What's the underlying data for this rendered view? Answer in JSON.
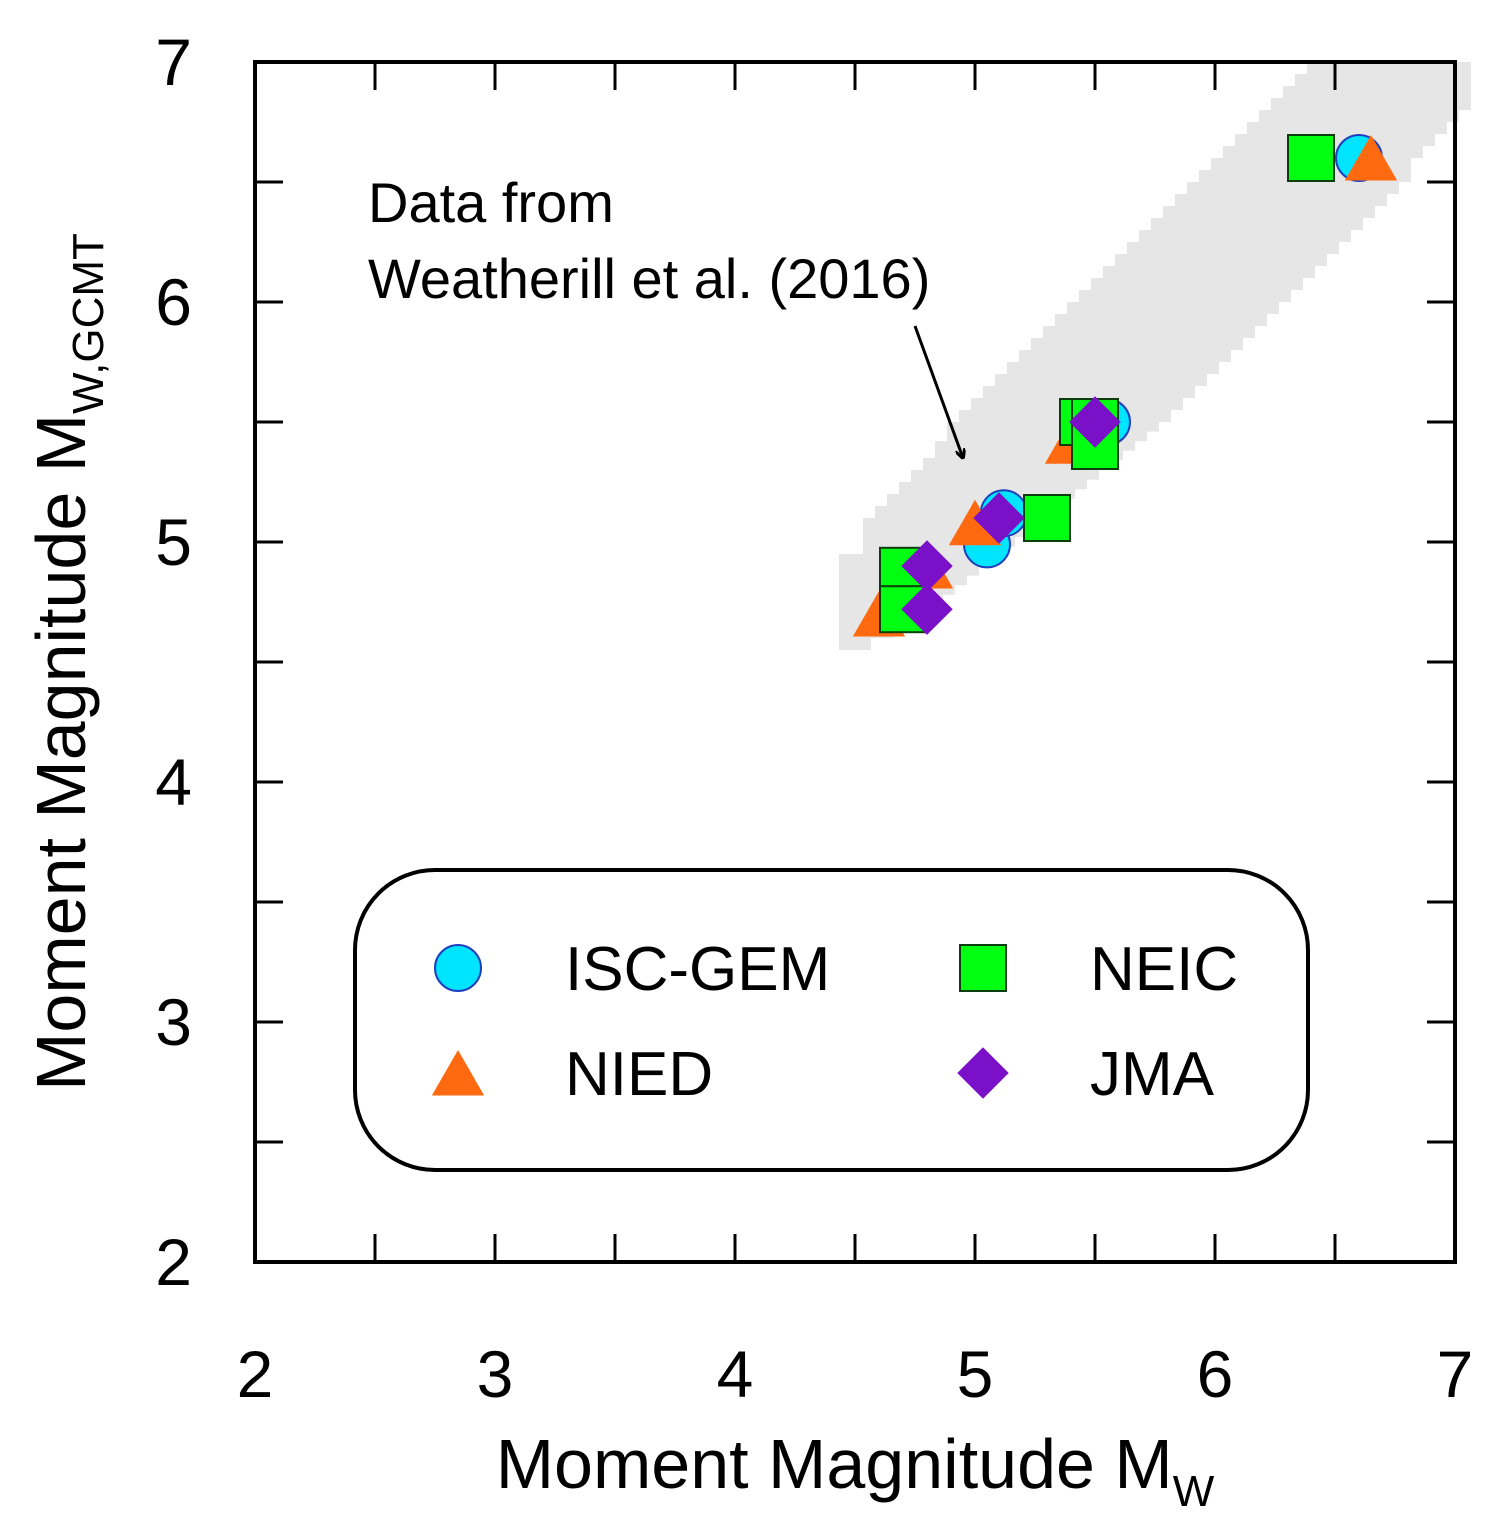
{
  "chart_data": {
    "type": "scatter",
    "title": "",
    "xlabel": "Moment Magnitude M",
    "xlabel_sub": "W",
    "ylabel": "Moment Magnitude M",
    "ylabel_sub": "W,GCMT",
    "xlim": [
      2,
      7
    ],
    "ylim": [
      2,
      7
    ],
    "xticks": [
      2,
      3,
      4,
      5,
      6,
      7
    ],
    "yticks": [
      2,
      3,
      4,
      5,
      6,
      7
    ],
    "xtick_labels": [
      "2",
      "3",
      "4",
      "5",
      "6",
      "7"
    ],
    "ytick_labels": [
      "2",
      "3",
      "4",
      "5",
      "6",
      "7"
    ],
    "grid": false,
    "legend": "bottom-center",
    "background_data": {
      "label": "Data from Weatherill et al. (2016)",
      "color": "#e6e6e6",
      "x": [
        4.5,
        4.6,
        4.65,
        4.7,
        4.75,
        4.8,
        4.85,
        4.9,
        4.95,
        5.0,
        5.05,
        5.1,
        5.15,
        5.2,
        5.25,
        5.3,
        5.35,
        5.4,
        5.45,
        5.5,
        5.55,
        5.6,
        5.65,
        5.7,
        5.75,
        5.8,
        5.85,
        5.9,
        5.95,
        6.0,
        6.05,
        6.1,
        6.15,
        6.2,
        6.25,
        6.3,
        6.35,
        6.4,
        6.45,
        6.5,
        6.55,
        6.6,
        6.65,
        6.7,
        6.75,
        6.8,
        6.85,
        6.9,
        6.95,
        7.0
      ],
      "y_min": [
        4.55,
        4.6,
        4.62,
        4.66,
        4.7,
        4.74,
        4.78,
        4.82,
        4.86,
        4.9,
        4.94,
        4.98,
        5.02,
        5.06,
        5.1,
        5.14,
        5.18,
        5.22,
        5.26,
        5.3,
        5.34,
        5.38,
        5.42,
        5.46,
        5.5,
        5.55,
        5.6,
        5.65,
        5.7,
        5.75,
        5.8,
        5.85,
        5.9,
        5.95,
        6.0,
        6.05,
        6.1,
        6.15,
        6.2,
        6.25,
        6.3,
        6.35,
        6.4,
        6.45,
        6.5,
        6.6,
        6.65,
        6.7,
        6.75,
        6.8
      ],
      "y_max": [
        4.95,
        5.1,
        5.15,
        5.2,
        5.25,
        5.3,
        5.35,
        5.42,
        5.5,
        5.55,
        5.6,
        5.65,
        5.7,
        5.75,
        5.8,
        5.85,
        5.9,
        5.95,
        6.0,
        6.05,
        6.1,
        6.15,
        6.2,
        6.25,
        6.3,
        6.35,
        6.4,
        6.45,
        6.5,
        6.55,
        6.6,
        6.65,
        6.7,
        6.75,
        6.8,
        6.85,
        6.9,
        6.95,
        7.0,
        7.0,
        7.0,
        7.0,
        7.0,
        7.0,
        7.0,
        7.0,
        7.0,
        7.0,
        7.0,
        7.0
      ]
    },
    "annotation": {
      "lines": [
        "Data from",
        "Weatherill et al. (2016)"
      ],
      "arrow_from": [
        4.75,
        5.9
      ],
      "arrow_to": [
        4.95,
        5.35
      ]
    },
    "series": [
      {
        "name": "ISC-GEM",
        "marker": "circle",
        "color": "#00e5ff",
        "edge": "#1f3fbf",
        "points": [
          [
            5.05,
            4.99
          ],
          [
            5.12,
            5.12
          ],
          [
            5.55,
            5.5
          ],
          [
            6.6,
            6.6
          ]
        ]
      },
      {
        "name": "NIED",
        "marker": "triangle",
        "color": "#ff6a10",
        "edge": "#ff6a10",
        "points": [
          [
            4.6,
            4.7
          ],
          [
            4.8,
            4.9
          ],
          [
            5.0,
            5.08
          ],
          [
            5.4,
            5.42
          ],
          [
            6.65,
            6.6
          ]
        ]
      },
      {
        "name": "NEIC",
        "marker": "square",
        "color": "#00ff10",
        "edge": "#0d3d0d",
        "points": [
          [
            4.7,
            4.88
          ],
          [
            4.7,
            4.72
          ],
          [
            5.3,
            5.1
          ],
          [
            5.45,
            5.5
          ],
          [
            5.5,
            5.5
          ],
          [
            5.5,
            5.4
          ],
          [
            6.4,
            6.6
          ]
        ]
      },
      {
        "name": "JMA",
        "marker": "diamond",
        "color": "#7a10c8",
        "edge": "#7a10c8",
        "points": [
          [
            4.8,
            4.72
          ],
          [
            4.8,
            4.9
          ],
          [
            5.1,
            5.1
          ],
          [
            5.5,
            5.5
          ]
        ]
      }
    ]
  }
}
